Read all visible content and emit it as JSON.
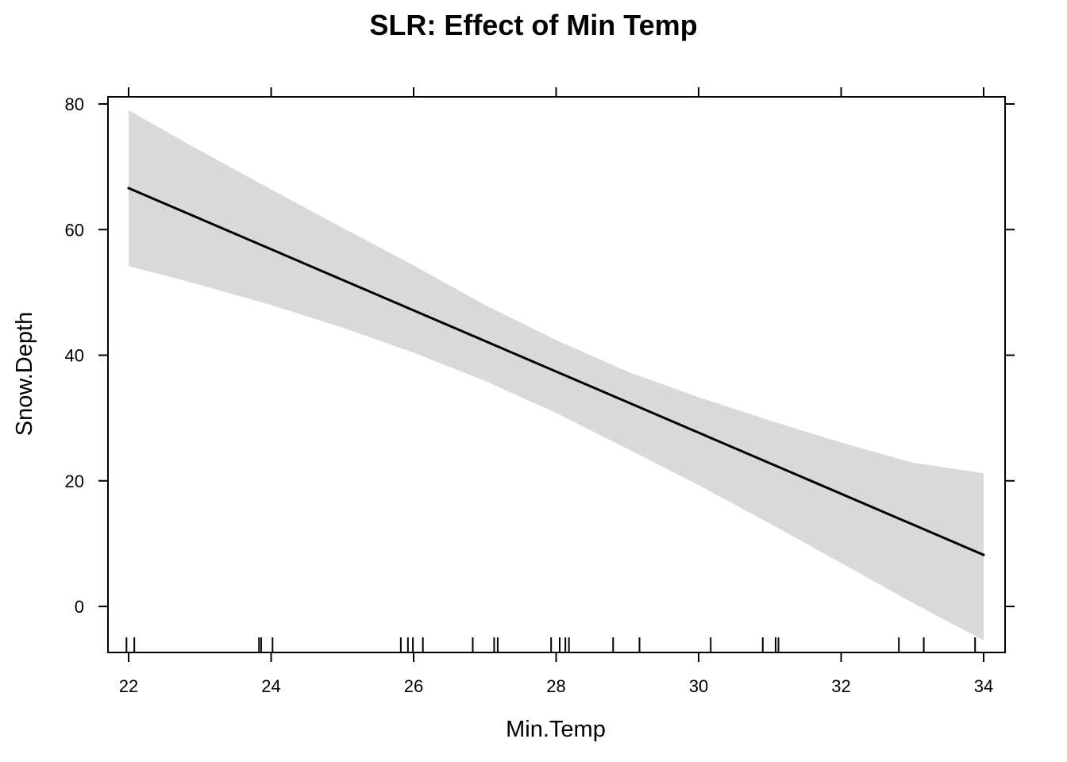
{
  "chart_data": {
    "type": "line",
    "title": "SLR: Effect of Min Temp",
    "xlabel": "Min.Temp",
    "ylabel": "Snow.Depth",
    "xlim": [
      21.7,
      34.3
    ],
    "ylim": [
      -7.2,
      80.2
    ],
    "x_ticks": [
      22,
      24,
      26,
      28,
      30,
      32,
      34
    ],
    "y_ticks": [
      0,
      20,
      40,
      60,
      80
    ],
    "x_tick_labels": [
      "22",
      "24",
      "26",
      "28",
      "30",
      "32",
      "34"
    ],
    "y_tick_labels": [
      "0",
      "20",
      "40",
      "60",
      "80"
    ],
    "fit": {
      "x": [
        22,
        34
      ],
      "y": [
        66.6,
        8.2
      ]
    },
    "confidence_band": {
      "x": [
        22,
        23,
        24,
        25,
        26,
        27,
        28,
        29,
        30,
        31,
        32,
        33,
        34
      ],
      "lower": [
        54.2,
        51.2,
        48.0,
        44.4,
        40.4,
        35.9,
        30.8,
        25.1,
        19.3,
        13.2,
        6.9,
        0.6,
        -5.4
      ],
      "upper": [
        79.0,
        72.6,
        66.4,
        60.3,
        54.3,
        48.0,
        42.4,
        37.4,
        33.3,
        29.6,
        26.1,
        22.9,
        21.2
      ]
    },
    "rug_x": [
      21.97,
      22.08,
      23.83,
      23.86,
      24.02,
      25.82,
      25.92,
      25.99,
      26.13,
      26.83,
      27.13,
      27.18,
      27.93,
      28.05,
      28.13,
      28.18,
      28.8,
      29.17,
      30.17,
      30.9,
      31.08,
      31.12,
      32.81,
      33.16,
      33.88
    ],
    "colors": {
      "line": "#000000",
      "band": "#d9d9d9",
      "frame": "#000000"
    }
  }
}
